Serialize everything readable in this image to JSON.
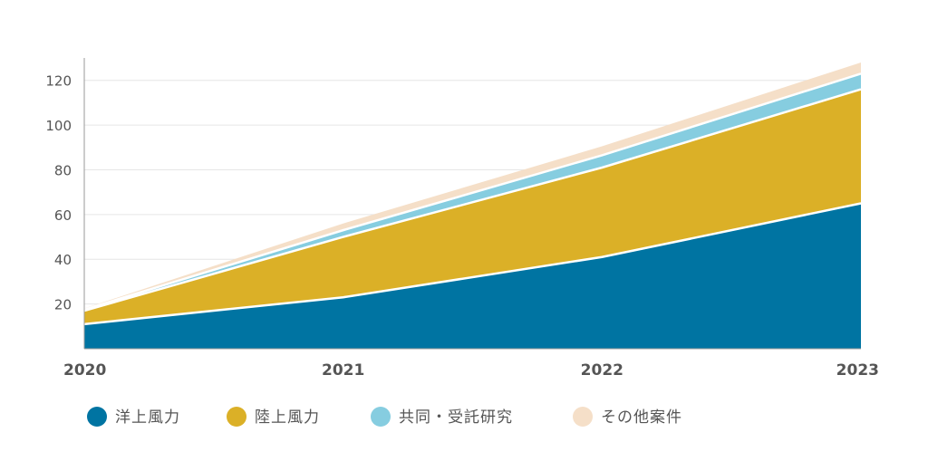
{
  "chart_data": {
    "type": "area",
    "stacked": true,
    "x": [
      "2020",
      "2021",
      "2022",
      "2023"
    ],
    "ylim": [
      0,
      130
    ],
    "yticks": [
      20,
      40,
      60,
      80,
      100,
      120
    ],
    "grid": true,
    "legend_position": "bottom",
    "series": [
      {
        "name": "洋上風力",
        "values": [
          11,
          23,
          41,
          65
        ],
        "color": "#0074a2"
      },
      {
        "name": "陸上風力",
        "values": [
          6,
          27,
          40,
          51
        ],
        "color": "#dbb027"
      },
      {
        "name": "共同・受託研究",
        "values": [
          0.5,
          3,
          5.5,
          7
        ],
        "color": "#86cde0"
      },
      {
        "name": "その他案件",
        "values": [
          0.5,
          3,
          4,
          5
        ],
        "color": "#f5dfc8"
      }
    ]
  }
}
